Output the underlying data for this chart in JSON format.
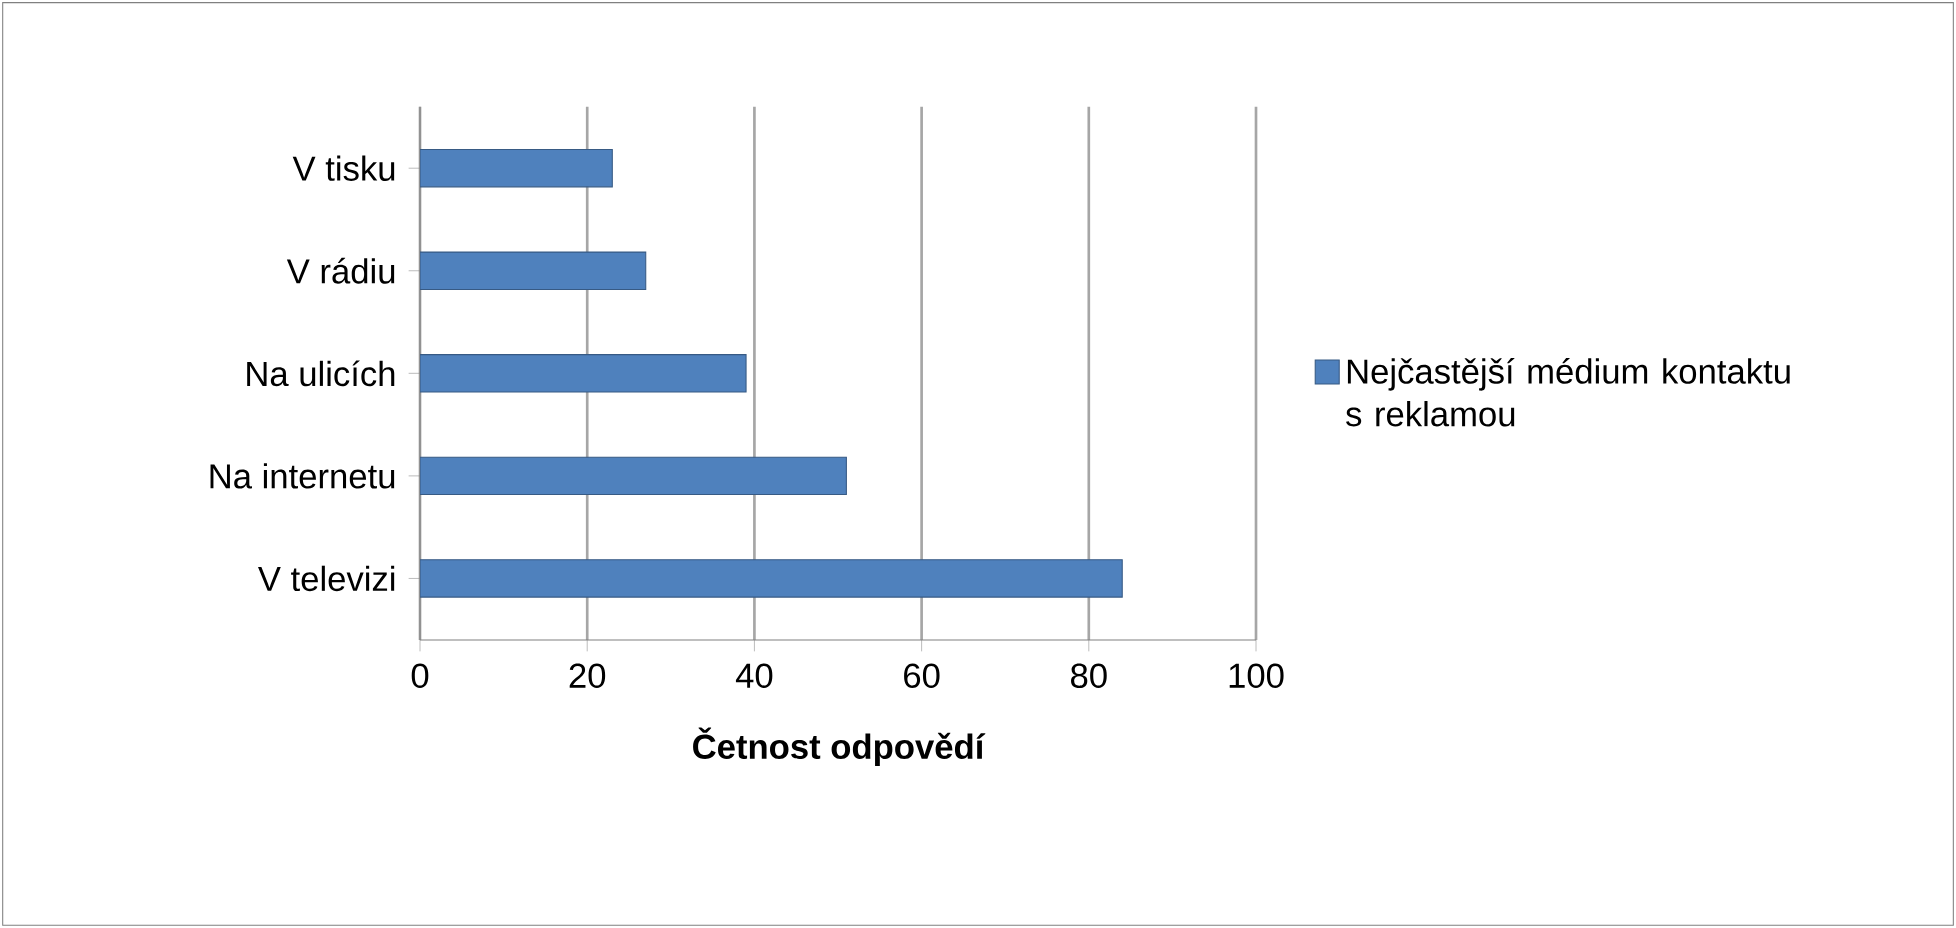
{
  "chart_data": {
    "type": "bar",
    "orientation": "horizontal",
    "xlabel": "Četnost odpovědí",
    "categories": [
      "V tisku",
      "V rádiu",
      "Na ulicích",
      "Na internetu",
      "V televizi"
    ],
    "series": [
      {
        "name": "Nejčastější médium kontaktu s reklamou",
        "color": "#4f81bd",
        "values": [
          23,
          27,
          39,
          51,
          84
        ]
      }
    ],
    "xlim": [
      0,
      100
    ],
    "xticks": [
      0,
      20,
      40,
      60,
      80,
      100
    ],
    "grid": "x",
    "legend": "right"
  }
}
